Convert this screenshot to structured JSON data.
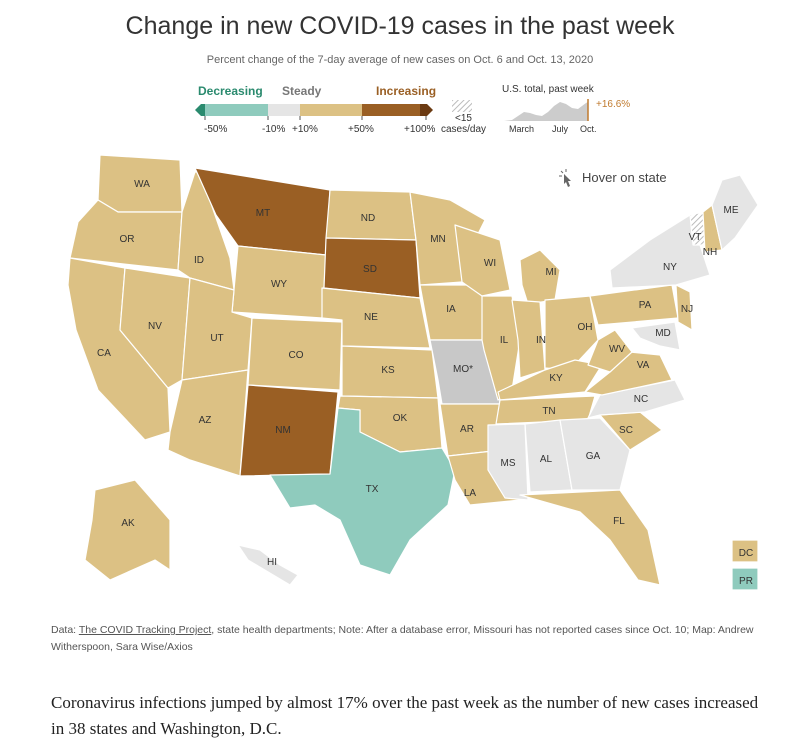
{
  "title": "Change in new COVID-19 cases in the past week",
  "subtitle": "Percent change of the 7-day average of new cases on Oct. 6 and Oct. 13, 2020",
  "legend": {
    "decreasing": "Decreasing",
    "steady": "Steady",
    "increasing": "Increasing",
    "ticks": [
      "-50%",
      "-10%",
      "+10%",
      "+50%",
      "+100%"
    ],
    "low_cases_value": "<15",
    "low_cases_unit": "cases/day",
    "us_total_label": "U.S. total, past week",
    "us_total_change": "+16.6%",
    "sparkline_labels": [
      "March",
      "July",
      "Oct."
    ]
  },
  "hover_hint": "Hover on state",
  "states": [
    {
      "abbr": "WA",
      "category": "increase"
    },
    {
      "abbr": "OR",
      "category": "increase"
    },
    {
      "abbr": "CA",
      "category": "increase"
    },
    {
      "abbr": "NV",
      "category": "increase"
    },
    {
      "abbr": "ID",
      "category": "increase"
    },
    {
      "abbr": "MT",
      "category": "large_increase"
    },
    {
      "abbr": "WY",
      "category": "increase"
    },
    {
      "abbr": "UT",
      "category": "increase"
    },
    {
      "abbr": "AZ",
      "category": "increase"
    },
    {
      "abbr": "CO",
      "category": "increase"
    },
    {
      "abbr": "NM",
      "category": "large_increase"
    },
    {
      "abbr": "ND",
      "category": "increase"
    },
    {
      "abbr": "SD",
      "category": "large_increase"
    },
    {
      "abbr": "NE",
      "category": "increase"
    },
    {
      "abbr": "KS",
      "category": "increase"
    },
    {
      "abbr": "OK",
      "category": "increase"
    },
    {
      "abbr": "TX",
      "category": "decrease"
    },
    {
      "abbr": "MN",
      "category": "increase"
    },
    {
      "abbr": "IA",
      "category": "increase"
    },
    {
      "abbr": "MO*",
      "category": "no_data"
    },
    {
      "abbr": "AR",
      "category": "increase"
    },
    {
      "abbr": "LA",
      "category": "increase"
    },
    {
      "abbr": "WI",
      "category": "increase"
    },
    {
      "abbr": "IL",
      "category": "increase"
    },
    {
      "abbr": "MI",
      "category": "increase"
    },
    {
      "abbr": "IN",
      "category": "increase"
    },
    {
      "abbr": "OH",
      "category": "increase"
    },
    {
      "abbr": "KY",
      "category": "increase"
    },
    {
      "abbr": "TN",
      "category": "increase"
    },
    {
      "abbr": "MS",
      "category": "steady"
    },
    {
      "abbr": "AL",
      "category": "steady"
    },
    {
      "abbr": "GA",
      "category": "steady"
    },
    {
      "abbr": "FL",
      "category": "increase"
    },
    {
      "abbr": "SC",
      "category": "increase"
    },
    {
      "abbr": "NC",
      "category": "steady"
    },
    {
      "abbr": "VA",
      "category": "increase"
    },
    {
      "abbr": "WV",
      "category": "increase"
    },
    {
      "abbr": "PA",
      "category": "increase"
    },
    {
      "abbr": "NY",
      "category": "steady"
    },
    {
      "abbr": "NJ",
      "category": "increase"
    },
    {
      "abbr": "MD",
      "category": "steady"
    },
    {
      "abbr": "VT",
      "category": "low_cases"
    },
    {
      "abbr": "NH",
      "category": "increase"
    },
    {
      "abbr": "ME",
      "category": "steady"
    },
    {
      "abbr": "AK",
      "category": "increase"
    },
    {
      "abbr": "HI",
      "category": "steady"
    },
    {
      "abbr": "DC",
      "category": "increase"
    },
    {
      "abbr": "PR",
      "category": "decrease"
    }
  ],
  "colors": {
    "strong_decrease": "#2a8a6e",
    "decrease": "#8fcbbd",
    "steady": "#e5e5e5",
    "increase": "#dcc184",
    "large_increase": "#9a5f24",
    "extreme_increase": "#6b3a12",
    "no_data": "#c8c8c8",
    "decreasing_text": "#2a8a6e",
    "steady_text": "#777777",
    "increasing_text": "#9a5f24",
    "us_total_text": "#c07a2e"
  },
  "note": {
    "data_prefix": "Data: ",
    "source_link": "The COVID Tracking Project",
    "rest": ", state health departments; Note: After a database error, Missouri has not reported cases since Oct. 10; Map: Andrew Witherspoon, Sara Wise/Axios"
  },
  "body_text": "Coronavirus infections jumped by almost 17% over the past week as the number of new cases increased in 38 states and Washington, D.C."
}
